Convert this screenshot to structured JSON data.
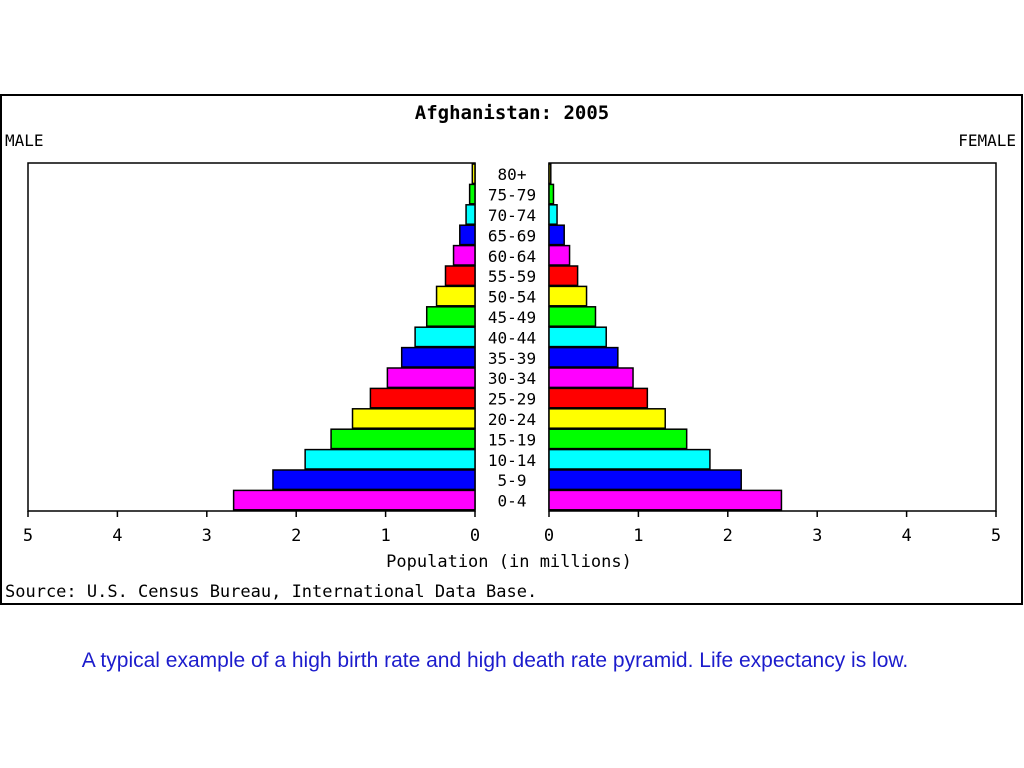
{
  "chart_data": {
    "type": "bar",
    "title": "Afghanistan: 2005",
    "left_label": "MALE",
    "right_label": "FEMALE",
    "xlabel": "Population (in millions)",
    "source": "Source: U.S. Census Bureau, International Data Base.",
    "xlim": [
      0,
      5
    ],
    "xticks": [
      "5",
      "4",
      "3",
      "2",
      "1",
      "0"
    ],
    "xticks_right": [
      "0",
      "1",
      "2",
      "3",
      "4",
      "5"
    ],
    "categories": [
      "80+",
      "75-79",
      "70-74",
      "65-69",
      "60-64",
      "55-59",
      "50-54",
      "45-49",
      "40-44",
      "35-39",
      "30-34",
      "25-29",
      "20-24",
      "15-19",
      "10-14",
      "5-9",
      "0-4"
    ],
    "colors": [
      "#ffff00",
      "#00ff00",
      "#00ffff",
      "#0000ff",
      "#ff00ff",
      "#ff0000",
      "#ffff00",
      "#00ff00",
      "#00ffff",
      "#0000ff",
      "#ff00ff",
      "#ff0000",
      "#ffff00",
      "#00ff00",
      "#00ffff",
      "#0000ff",
      "#ff00ff"
    ],
    "series": [
      {
        "name": "MALE",
        "values": [
          0.03,
          0.06,
          0.1,
          0.17,
          0.24,
          0.33,
          0.43,
          0.54,
          0.67,
          0.82,
          0.98,
          1.17,
          1.37,
          1.61,
          1.9,
          2.26,
          2.7
        ]
      },
      {
        "name": "FEMALE",
        "values": [
          0.02,
          0.05,
          0.09,
          0.17,
          0.23,
          0.32,
          0.42,
          0.52,
          0.64,
          0.77,
          0.94,
          1.1,
          1.3,
          1.54,
          1.8,
          2.15,
          2.6
        ]
      }
    ]
  },
  "caption": "A typical example of a high birth rate and high death rate pyramid.  Life expectancy is low."
}
